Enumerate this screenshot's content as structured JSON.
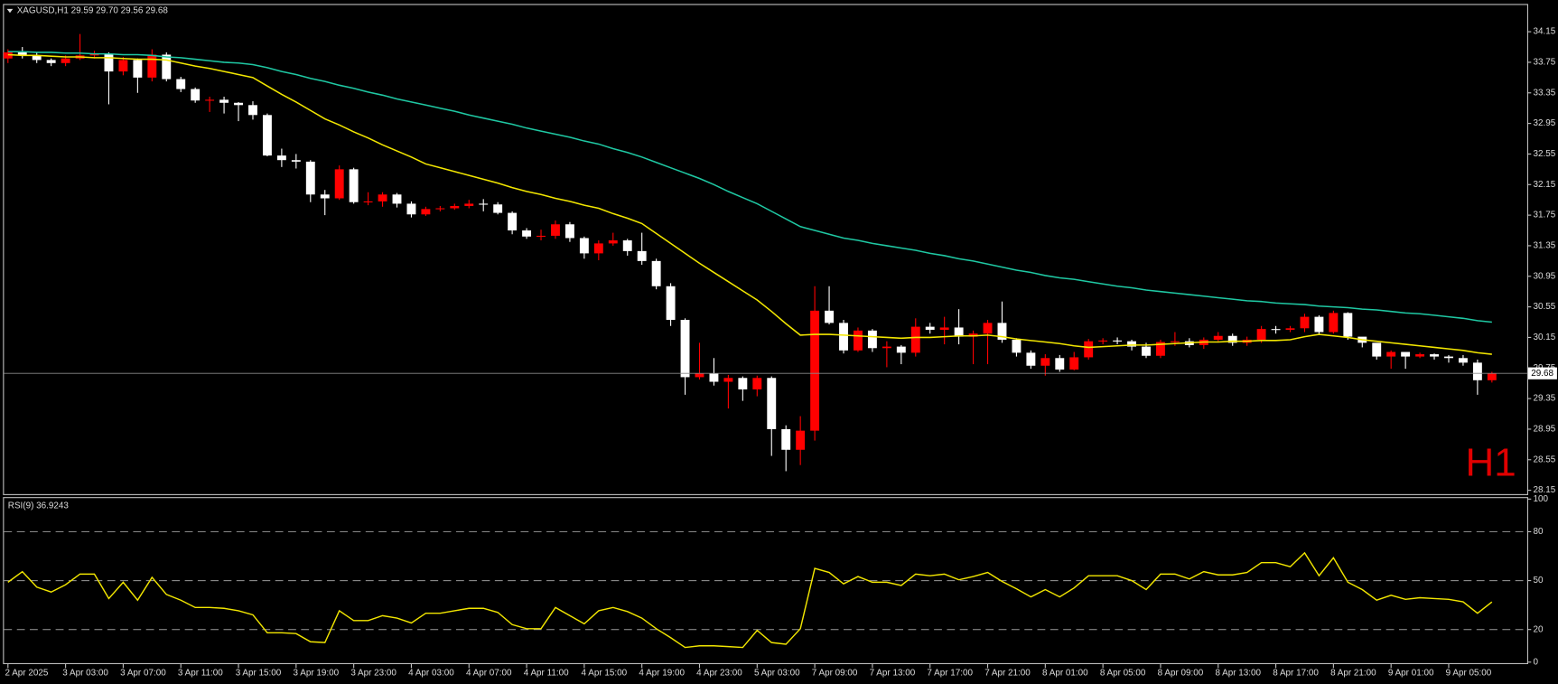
{
  "chart_data": [
    {
      "type": "candlestick",
      "header": "XAGUSD,H1  29.59 29.70 29.56 29.68",
      "label": "H1",
      "up_color": "#ff0000",
      "down_color": "#ffffff",
      "ylim": [
        28.1,
        34.5
      ],
      "yticks": [
        34.15,
        33.75,
        33.35,
        32.95,
        32.55,
        32.15,
        31.75,
        31.35,
        30.95,
        30.55,
        30.15,
        29.75,
        29.35,
        28.95,
        28.55,
        28.15
      ],
      "categories": [
        "2 Apr 2025",
        null,
        null,
        null,
        "3 Apr 03:00",
        null,
        null,
        null,
        "3 Apr 07:00",
        null,
        null,
        null,
        "3 Apr 11:00",
        null,
        null,
        null,
        "3 Apr 15:00",
        null,
        null,
        null,
        "3 Apr 19:00",
        null,
        null,
        null,
        "3 Apr 23:00",
        null,
        null,
        null,
        "4 Apr 03:00",
        null,
        null,
        null,
        "4 Apr 07:00",
        null,
        null,
        null,
        "4 Apr 11:00",
        null,
        null,
        null,
        "4 Apr 15:00",
        null,
        null,
        null,
        "4 Apr 19:00",
        null,
        null,
        null,
        "4 Apr 23:00",
        null,
        null,
        null,
        "5 Apr 03:00",
        null,
        null,
        null,
        "7 Apr 09:00",
        null,
        null,
        null,
        "7 Apr 13:00",
        null,
        null,
        null,
        "7 Apr 17:00",
        null,
        null,
        null,
        "7 Apr 21:00",
        null,
        null,
        null,
        "8 Apr 01:00",
        null,
        null,
        null,
        "8 Apr 05:00",
        null,
        null,
        null,
        "8 Apr 09:00",
        null,
        null,
        null,
        "8 Apr 13:00",
        null,
        null,
        null,
        "8 Apr 17:00",
        null,
        null,
        null,
        "8 Apr 21:00",
        null,
        null,
        null,
        "9 Apr 01:00",
        null,
        null,
        null,
        "9 Apr 05:00",
        null,
        null,
        null
      ],
      "open": [
        33.8,
        33.88,
        33.84,
        33.78,
        33.74,
        33.8,
        33.84,
        33.86,
        33.63,
        33.78,
        33.55,
        33.85,
        33.53,
        33.4,
        33.25,
        33.26,
        33.22,
        33.19,
        33.06,
        32.53,
        32.47,
        32.45,
        32.02,
        31.97,
        32.35,
        31.92,
        31.93,
        32.02,
        31.9,
        31.76,
        31.83,
        31.84,
        31.87,
        31.9,
        31.89,
        31.78,
        31.55,
        31.47,
        31.48,
        31.63,
        31.45,
        31.25,
        31.38,
        31.42,
        31.28,
        31.15,
        30.82,
        30.38,
        29.63,
        29.68,
        29.57,
        29.62,
        29.47,
        29.62,
        28.95,
        28.68,
        28.93,
        30.5,
        30.34,
        29.98,
        30.24,
        30.01,
        30.03,
        29.95,
        30.29,
        30.25,
        30.28,
        30.16,
        30.2,
        30.34,
        30.12,
        29.95,
        29.78,
        29.88,
        29.73,
        29.89,
        30.1,
        30.11,
        30.1,
        30.03,
        29.91,
        30.09,
        30.1,
        30.05,
        30.12,
        30.17,
        30.08,
        30.12,
        30.26,
        30.25,
        30.27,
        30.42,
        30.22,
        30.47,
        30.16,
        30.08,
        29.9,
        29.96,
        29.9,
        29.93,
        29.9,
        29.88,
        29.82,
        29.59
      ],
      "high": [
        33.92,
        33.95,
        33.88,
        33.8,
        33.84,
        34.12,
        33.9,
        33.88,
        33.82,
        33.8,
        33.92,
        33.88,
        33.56,
        33.42,
        33.3,
        33.3,
        33.23,
        33.24,
        33.08,
        32.62,
        32.55,
        32.47,
        32.08,
        32.4,
        32.37,
        32.05,
        32.05,
        32.04,
        31.93,
        31.86,
        31.87,
        31.9,
        31.95,
        31.96,
        31.92,
        31.8,
        31.58,
        31.56,
        31.68,
        31.66,
        31.47,
        31.42,
        31.52,
        31.44,
        31.52,
        31.18,
        30.86,
        30.4,
        30.08,
        29.88,
        29.66,
        29.64,
        29.65,
        29.64,
        29.0,
        29.12,
        30.82,
        30.82,
        30.38,
        30.28,
        30.26,
        30.1,
        30.05,
        30.4,
        30.34,
        30.42,
        30.52,
        30.24,
        30.38,
        30.62,
        30.14,
        29.98,
        29.93,
        29.92,
        29.96,
        30.13,
        30.14,
        30.15,
        30.12,
        30.08,
        30.12,
        30.22,
        30.14,
        30.15,
        30.22,
        30.2,
        30.16,
        30.3,
        30.3,
        30.3,
        30.46,
        30.44,
        30.5,
        30.48,
        30.14,
        30.06,
        29.98,
        29.96,
        29.95,
        29.94,
        29.92,
        29.92,
        29.86,
        29.7
      ],
      "low": [
        33.74,
        33.8,
        33.74,
        33.7,
        33.7,
        33.78,
        33.8,
        33.2,
        33.58,
        33.35,
        33.5,
        33.5,
        33.36,
        33.22,
        33.1,
        33.08,
        32.98,
        33.0,
        32.52,
        32.38,
        32.36,
        31.92,
        31.75,
        31.95,
        31.9,
        31.88,
        31.86,
        31.85,
        31.72,
        31.74,
        31.8,
        31.82,
        31.84,
        31.8,
        31.76,
        31.5,
        31.44,
        31.42,
        31.44,
        31.4,
        31.18,
        31.16,
        31.35,
        31.22,
        31.1,
        30.78,
        30.3,
        29.4,
        29.6,
        29.52,
        29.22,
        29.32,
        29.38,
        28.6,
        28.4,
        28.48,
        28.8,
        30.32,
        29.94,
        29.96,
        29.96,
        29.76,
        29.8,
        29.9,
        30.2,
        30.06,
        30.06,
        29.8,
        29.8,
        30.08,
        29.9,
        29.74,
        29.65,
        29.7,
        29.72,
        29.86,
        30.06,
        30.06,
        29.98,
        29.88,
        29.88,
        30.04,
        30.02,
        30.0,
        30.1,
        30.04,
        30.04,
        30.08,
        30.2,
        30.22,
        30.22,
        30.18,
        30.2,
        30.12,
        30.02,
        29.86,
        29.74,
        29.74,
        29.88,
        29.86,
        29.82,
        29.78,
        29.4,
        29.56
      ],
      "close": [
        33.88,
        33.84,
        33.78,
        33.74,
        33.8,
        33.84,
        33.86,
        33.63,
        33.78,
        33.55,
        33.85,
        33.53,
        33.4,
        33.25,
        33.26,
        33.22,
        33.19,
        33.06,
        32.53,
        32.47,
        32.45,
        32.02,
        31.97,
        32.35,
        31.92,
        31.93,
        32.02,
        31.9,
        31.76,
        31.83,
        31.84,
        31.87,
        31.9,
        31.89,
        31.78,
        31.55,
        31.47,
        31.48,
        31.63,
        31.45,
        31.25,
        31.38,
        31.42,
        31.28,
        31.15,
        30.82,
        30.38,
        29.63,
        29.68,
        29.57,
        29.62,
        29.47,
        29.62,
        28.95,
        28.68,
        28.93,
        30.5,
        30.34,
        29.98,
        30.24,
        30.01,
        30.03,
        29.95,
        30.29,
        30.25,
        30.28,
        30.16,
        30.2,
        30.34,
        30.12,
        29.95,
        29.78,
        29.88,
        29.73,
        29.89,
        30.1,
        30.11,
        30.1,
        30.03,
        29.91,
        30.09,
        30.1,
        30.05,
        30.12,
        30.17,
        30.08,
        30.12,
        30.26,
        30.25,
        30.27,
        30.42,
        30.22,
        30.47,
        30.16,
        30.08,
        29.9,
        29.96,
        29.9,
        29.93,
        29.9,
        29.88,
        29.82,
        29.59,
        29.68
      ],
      "lines": [
        {
          "color": "#f2e600",
          "values": [
            33.85,
            33.84,
            33.84,
            33.83,
            33.82,
            33.82,
            33.81,
            33.81,
            33.8,
            33.79,
            33.79,
            33.78,
            33.74,
            33.7,
            33.67,
            33.63,
            33.59,
            33.55,
            33.44,
            33.33,
            33.23,
            33.12,
            33.01,
            32.93,
            32.84,
            32.76,
            32.67,
            32.59,
            32.51,
            32.42,
            32.37,
            32.32,
            32.27,
            32.22,
            32.17,
            32.11,
            32.06,
            32.02,
            31.97,
            31.93,
            31.88,
            31.84,
            31.77,
            31.71,
            31.64,
            31.51,
            31.38,
            31.25,
            31.12,
            31.0,
            30.88,
            30.76,
            30.64,
            30.49,
            30.33,
            30.18,
            30.19,
            30.19,
            30.18,
            30.17,
            30.16,
            30.15,
            30.14,
            30.15,
            30.15,
            30.16,
            30.17,
            30.17,
            30.18,
            30.16,
            30.13,
            30.11,
            30.09,
            30.07,
            30.04,
            30.02,
            30.03,
            30.04,
            30.05,
            30.05,
            30.06,
            30.07,
            30.08,
            30.09,
            30.09,
            30.1,
            30.1,
            30.11,
            30.11,
            30.12,
            30.16,
            30.19,
            30.17,
            30.15,
            30.12,
            30.1,
            30.08,
            30.06,
            30.04,
            30.02,
            30.0,
            29.98,
            29.95,
            29.93
          ]
        },
        {
          "color": "#1fc8a3",
          "values": [
            33.89,
            33.89,
            33.88,
            33.88,
            33.87,
            33.87,
            33.86,
            33.86,
            33.85,
            33.85,
            33.84,
            33.82,
            33.81,
            33.79,
            33.77,
            33.75,
            33.74,
            33.72,
            33.68,
            33.63,
            33.59,
            33.54,
            33.5,
            33.45,
            33.41,
            33.36,
            33.32,
            33.27,
            33.23,
            33.19,
            33.15,
            33.11,
            33.06,
            33.02,
            32.98,
            32.94,
            32.89,
            32.85,
            32.81,
            32.77,
            32.72,
            32.68,
            32.62,
            32.57,
            32.51,
            32.44,
            32.37,
            32.3,
            32.23,
            32.15,
            32.06,
            31.98,
            31.9,
            31.8,
            31.7,
            31.6,
            31.55,
            31.5,
            31.45,
            31.42,
            31.38,
            31.35,
            31.32,
            31.29,
            31.25,
            31.22,
            31.18,
            31.15,
            31.11,
            31.07,
            31.03,
            31.0,
            30.96,
            30.93,
            30.91,
            30.88,
            30.85,
            30.82,
            30.8,
            30.77,
            30.75,
            30.73,
            30.71,
            30.69,
            30.67,
            30.65,
            30.63,
            30.62,
            30.6,
            30.59,
            30.58,
            30.56,
            30.55,
            30.54,
            30.52,
            30.51,
            30.49,
            30.47,
            30.46,
            30.44,
            30.42,
            30.4,
            30.37,
            30.35
          ]
        }
      ]
    },
    {
      "type": "line",
      "title": "RSI(9) 36.9243",
      "color": "#f2e600",
      "ylim": [
        0,
        100
      ],
      "yticks": [
        100,
        80,
        50,
        20,
        0
      ],
      "levels": [
        80,
        50,
        20
      ],
      "values": [
        49,
        55.5,
        46,
        43,
        47.5,
        54,
        54,
        39,
        49,
        38,
        52,
        41.5,
        38,
        33.5,
        33.5,
        33,
        31.5,
        29,
        18,
        18,
        17.5,
        12.5,
        12,
        31.5,
        25.5,
        25.5,
        28.5,
        27,
        24,
        30,
        30,
        31.5,
        33,
        33,
        30.5,
        23,
        20.5,
        20.5,
        33.5,
        28.5,
        23.5,
        31.5,
        33.5,
        31,
        27,
        20.5,
        15,
        9,
        10,
        10,
        9.5,
        9,
        19.5,
        12,
        11,
        20.5,
        57.5,
        55,
        48,
        52.5,
        49,
        49,
        47,
        54,
        53,
        54,
        50.5,
        52.5,
        55,
        49.5,
        45,
        40,
        44.5,
        40,
        45.5,
        53,
        53,
        53,
        50,
        44.5,
        54,
        54,
        51,
        55.5,
        53.5,
        53.5,
        55,
        61,
        61,
        58.5,
        67,
        53,
        64,
        49,
        44.5,
        38,
        41,
        38.5,
        39.5,
        39,
        38.5,
        37,
        30,
        36.92
      ]
    }
  ]
}
